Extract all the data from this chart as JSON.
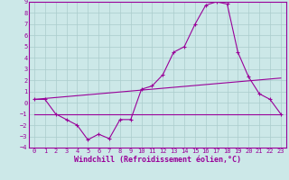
{
  "xlabel": "Windchill (Refroidissement éolien,°C)",
  "xlim": [
    -0.5,
    23.5
  ],
  "ylim": [
    -4,
    9
  ],
  "xticks": [
    0,
    1,
    2,
    3,
    4,
    5,
    6,
    7,
    8,
    9,
    10,
    11,
    12,
    13,
    14,
    15,
    16,
    17,
    18,
    19,
    20,
    21,
    22,
    23
  ],
  "yticks": [
    -4,
    -3,
    -2,
    -1,
    0,
    1,
    2,
    3,
    4,
    5,
    6,
    7,
    8,
    9
  ],
  "bg_color": "#cce8e8",
  "line_color": "#990099",
  "grid_color": "#aacccc",
  "line1_x": [
    0,
    1,
    2,
    3,
    4,
    5,
    6,
    7,
    8,
    9,
    10,
    11,
    12,
    13,
    14,
    15,
    16,
    17,
    18,
    19,
    20,
    21,
    22,
    23
  ],
  "line1_y": [
    0.3,
    0.3,
    -1.0,
    -1.5,
    -2.0,
    -3.3,
    -2.8,
    -3.2,
    -1.5,
    -1.5,
    1.2,
    1.5,
    2.5,
    4.5,
    5.0,
    7.0,
    8.7,
    9.0,
    8.8,
    4.5,
    2.3,
    0.8,
    0.3,
    -1.0
  ],
  "line2_x": [
    0,
    23
  ],
  "line2_y": [
    -1.0,
    -1.0
  ],
  "line3_x": [
    0,
    23
  ],
  "line3_y": [
    0.3,
    2.2
  ],
  "tick_fontsize": 5.0,
  "label_fontsize": 6.0
}
